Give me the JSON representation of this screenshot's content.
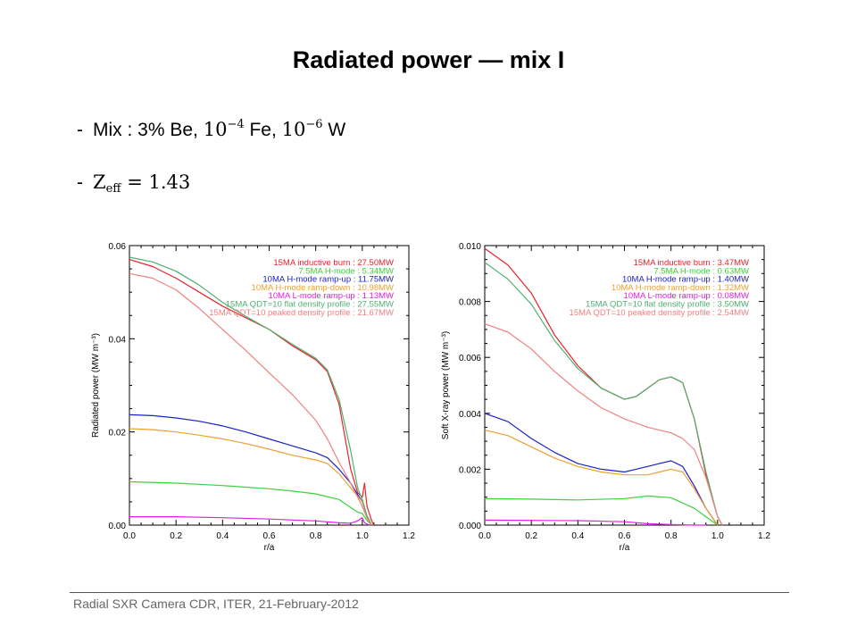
{
  "slide": {
    "title": "Radiated power — mix I",
    "bullet1": {
      "prefix": "Mix : 3% Be, ",
      "fe_base": "10",
      "fe_exp": "−4",
      "fe_label": " Fe, ",
      "w_base": "10",
      "w_exp": "−6",
      "w_label": " W"
    },
    "bullet2": {
      "z": "Z",
      "sub": "eff",
      "eq": " = 1.43"
    },
    "footer": "Radial SXR Camera CDR, ITER, 21-February-2012"
  },
  "chart_data": [
    {
      "type": "line",
      "xlabel": "r/a",
      "ylabel": "Radiated power (MW m⁻³)",
      "xlim": [
        0,
        1.2
      ],
      "ylim": [
        0,
        0.06
      ],
      "xticks": [
        "0.0",
        "0.2",
        "0.4",
        "0.6",
        "0.8",
        "1.0",
        "1.2"
      ],
      "yticks": [
        "0.00",
        "0.02",
        "0.04",
        "0.06"
      ],
      "yticks_values": [
        0,
        0.02,
        0.04,
        0.06
      ],
      "legend_position": "top-right",
      "series": [
        {
          "name": "15MA inductive burn : 27.50MW",
          "color": "#e8222a",
          "x": [
            0,
            0.1,
            0.2,
            0.3,
            0.4,
            0.5,
            0.6,
            0.7,
            0.8,
            0.85,
            0.9,
            0.95,
            0.98,
            1.0,
            1.01,
            1.02,
            1.04,
            1.05
          ],
          "y": [
            0.057,
            0.0555,
            0.053,
            0.05,
            0.047,
            0.0445,
            0.042,
            0.0385,
            0.0355,
            0.033,
            0.026,
            0.012,
            0.007,
            0.006,
            0.009,
            0.004,
            0.001,
            0
          ]
        },
        {
          "name": "7.5MA H-mode : 5.34MW",
          "color": "#3bd23b",
          "x": [
            0,
            0.2,
            0.4,
            0.6,
            0.7,
            0.8,
            0.9,
            0.95,
            0.98,
            1.0,
            1.02,
            1.04
          ],
          "y": [
            0.0093,
            0.009,
            0.0085,
            0.0078,
            0.0073,
            0.0067,
            0.0055,
            0.0038,
            0.0028,
            0.0025,
            0.001,
            0
          ]
        },
        {
          "name": "10MA H-mode ramp-up : 11.75MW",
          "color": "#1a22c8",
          "x": [
            0,
            0.1,
            0.2,
            0.3,
            0.4,
            0.5,
            0.6,
            0.7,
            0.8,
            0.85,
            0.9,
            0.95,
            1.0,
            1.02,
            1.04
          ],
          "y": [
            0.0237,
            0.0235,
            0.023,
            0.0223,
            0.0213,
            0.02,
            0.0185,
            0.017,
            0.0155,
            0.0145,
            0.012,
            0.009,
            0.005,
            0.002,
            0
          ]
        },
        {
          "name": "10MA H-mode ramp-down : 10.98MW",
          "color": "#f0a030",
          "x": [
            0,
            0.1,
            0.2,
            0.3,
            0.4,
            0.5,
            0.6,
            0.7,
            0.8,
            0.85,
            0.9,
            0.95,
            1.0,
            1.02,
            1.04
          ],
          "y": [
            0.0207,
            0.0205,
            0.02,
            0.0193,
            0.0185,
            0.0175,
            0.0163,
            0.015,
            0.014,
            0.0132,
            0.011,
            0.008,
            0.005,
            0.002,
            0
          ]
        },
        {
          "name": "10MA L-mode ramp-up : 1.13MW",
          "color": "#e020e0",
          "x": [
            0,
            0.2,
            0.4,
            0.6,
            0.8,
            0.9,
            0.95,
            0.98,
            1.0,
            1.01,
            1.03
          ],
          "y": [
            0.0018,
            0.0018,
            0.0016,
            0.0013,
            0.0009,
            0.0005,
            0.0004,
            0.0009,
            0.0016,
            0.0005,
            0
          ]
        },
        {
          "name": "15MA QDT=10 flat density profile : 27.55MW",
          "color": "#50b070",
          "x": [
            0,
            0.1,
            0.2,
            0.3,
            0.4,
            0.5,
            0.6,
            0.7,
            0.8,
            0.85,
            0.9,
            0.95,
            0.98,
            1.0,
            1.02,
            1.04
          ],
          "y": [
            0.0575,
            0.0565,
            0.0545,
            0.0515,
            0.0478,
            0.0448,
            0.042,
            0.0388,
            0.0358,
            0.0333,
            0.027,
            0.016,
            0.008,
            0.0055,
            0.002,
            0
          ]
        },
        {
          "name": "15MA QDT=10 peaked density profile : 21.67MW",
          "color": "#f08080",
          "x": [
            0,
            0.1,
            0.2,
            0.3,
            0.4,
            0.5,
            0.6,
            0.7,
            0.8,
            0.85,
            0.9,
            0.95,
            1.0,
            1.02,
            1.04
          ],
          "y": [
            0.054,
            0.053,
            0.0505,
            0.0465,
            0.042,
            0.0375,
            0.0327,
            0.028,
            0.0225,
            0.0185,
            0.0135,
            0.009,
            0.004,
            0.0015,
            0
          ]
        }
      ]
    },
    {
      "type": "line",
      "xlabel": "r/a",
      "ylabel": "Soft X-ray power (MW m⁻³)",
      "xlim": [
        0,
        1.2
      ],
      "ylim": [
        0,
        0.01
      ],
      "xticks": [
        "0.0",
        "0.2",
        "0.4",
        "0.6",
        "0.8",
        "1.0",
        "1.2"
      ],
      "yticks": [
        "0.000",
        "0.002",
        "0.004",
        "0.006",
        "0.008",
        "0.010"
      ],
      "yticks_values": [
        0,
        0.002,
        0.004,
        0.006,
        0.008,
        0.01
      ],
      "legend_position": "top-right",
      "series": [
        {
          "name": "15MA inductive burn : 3.47MW",
          "color": "#e8222a",
          "x": [
            0,
            0.1,
            0.2,
            0.3,
            0.4,
            0.5,
            0.6,
            0.65,
            0.7,
            0.75,
            0.8,
            0.85,
            0.9,
            0.95,
            1.0,
            1.02
          ],
          "y": [
            0.0099,
            0.0093,
            0.0083,
            0.0068,
            0.0057,
            0.0049,
            0.0045,
            0.0046,
            0.0049,
            0.0052,
            0.0053,
            0.0051,
            0.0038,
            0.0018,
            0.0003,
            0
          ]
        },
        {
          "name": "7.5MA H-mode : 0.63MW",
          "color": "#3bd23b",
          "x": [
            0,
            0.2,
            0.4,
            0.6,
            0.7,
            0.8,
            0.9,
            0.95,
            1.0
          ],
          "y": [
            0.00095,
            0.00093,
            0.0009,
            0.00095,
            0.00104,
            0.00098,
            0.0006,
            0.0003,
            0
          ]
        },
        {
          "name": "10MA H-mode ramp-up : 1.40MW",
          "color": "#1a22c8",
          "x": [
            0,
            0.1,
            0.2,
            0.3,
            0.4,
            0.5,
            0.6,
            0.65,
            0.7,
            0.75,
            0.8,
            0.85,
            0.9,
            0.95,
            1.0
          ],
          "y": [
            0.004,
            0.0037,
            0.0031,
            0.0026,
            0.0022,
            0.002,
            0.0019,
            0.002,
            0.0021,
            0.0022,
            0.0023,
            0.0021,
            0.0014,
            0.0006,
            0
          ]
        },
        {
          "name": "10MA H-mode ramp-down : 1.32MW",
          "color": "#f0a030",
          "x": [
            0,
            0.1,
            0.2,
            0.3,
            0.4,
            0.5,
            0.6,
            0.7,
            0.75,
            0.8,
            0.85,
            0.9,
            0.95,
            1.0
          ],
          "y": [
            0.0034,
            0.0032,
            0.0028,
            0.0024,
            0.0021,
            0.0019,
            0.0018,
            0.0018,
            0.0019,
            0.002,
            0.0019,
            0.0013,
            0.0006,
            0
          ]
        },
        {
          "name": "10MA L-mode ramp-up : 0.08MW",
          "color": "#e020e0",
          "x": [
            0,
            0.2,
            0.4,
            0.6,
            0.7,
            0.8,
            0.9,
            0.95
          ],
          "y": [
            0.00018,
            0.00017,
            0.00016,
            0.00012,
            5e-05,
            2e-05,
            0,
            0
          ]
        },
        {
          "name": "15MA QDT=10 flat density profile : 3.50MW",
          "color": "#50b070",
          "x": [
            0,
            0.1,
            0.2,
            0.3,
            0.4,
            0.5,
            0.6,
            0.65,
            0.7,
            0.75,
            0.8,
            0.85,
            0.9,
            0.95,
            1.0,
            1.02
          ],
          "y": [
            0.0094,
            0.0088,
            0.0079,
            0.0066,
            0.0056,
            0.0049,
            0.0045,
            0.0046,
            0.0049,
            0.0052,
            0.0053,
            0.0051,
            0.0038,
            0.0019,
            0.0003,
            0
          ]
        },
        {
          "name": "15MA QDT=10 peaked density profile : 2.54MW",
          "color": "#f08080",
          "x": [
            0,
            0.1,
            0.2,
            0.3,
            0.4,
            0.5,
            0.6,
            0.7,
            0.8,
            0.85,
            0.9,
            0.95,
            1.0,
            1.02
          ],
          "y": [
            0.0072,
            0.0069,
            0.0063,
            0.0055,
            0.0048,
            0.0042,
            0.0038,
            0.0035,
            0.0033,
            0.0031,
            0.0027,
            0.0017,
            0.0003,
            0
          ]
        }
      ]
    }
  ]
}
